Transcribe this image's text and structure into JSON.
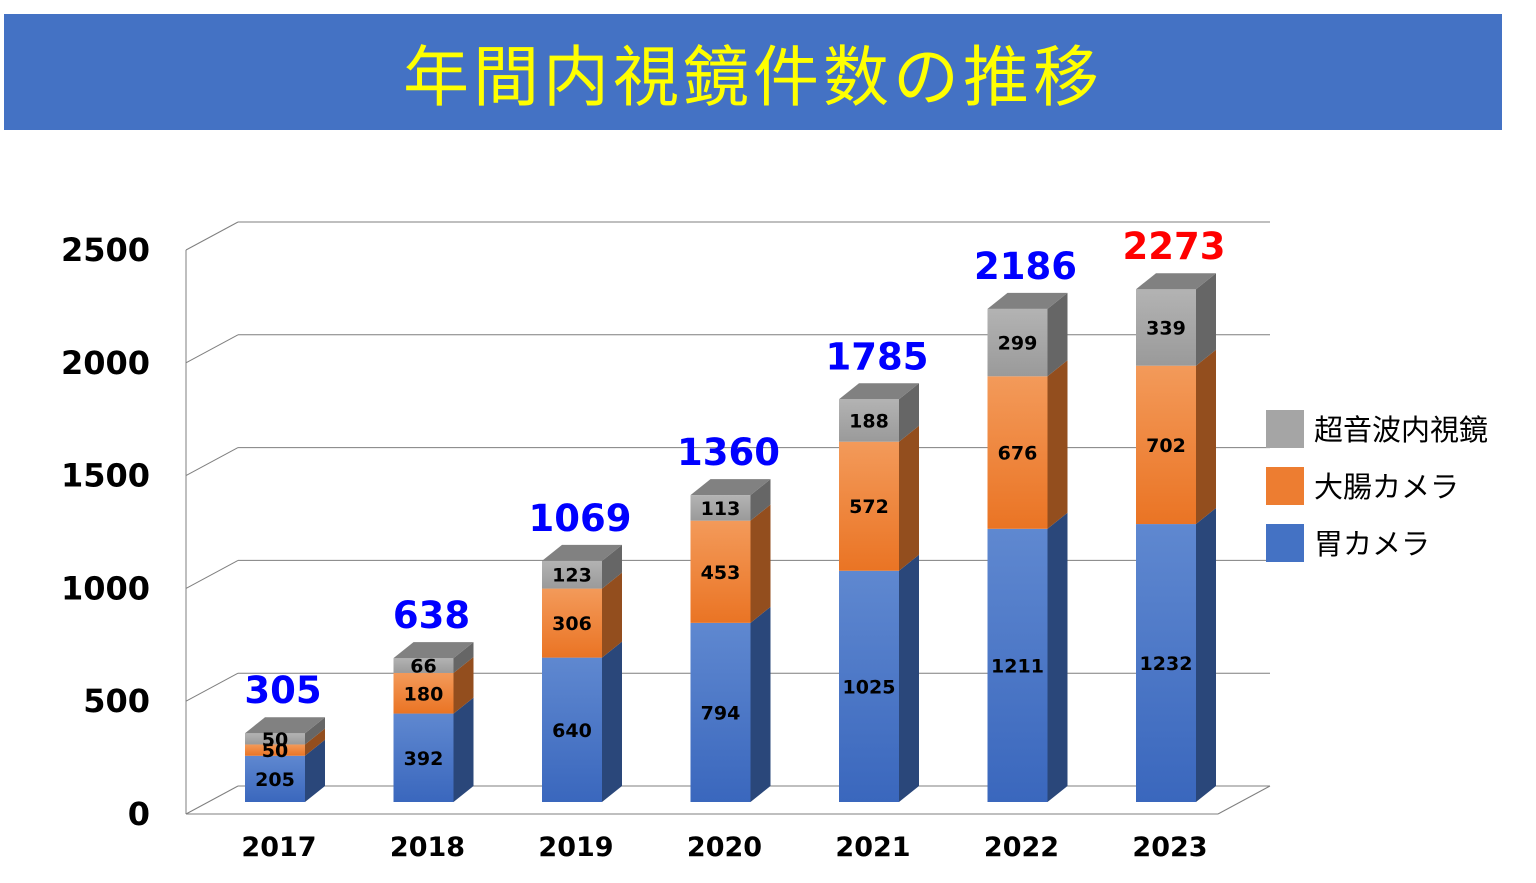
{
  "title": "年間内視鏡件数の推移",
  "colors": {
    "title_bg": "#4472c4",
    "title_text": "#ffff00",
    "total_default": "#0000ff",
    "total_highlight": "#ff0000"
  },
  "chart_data": {
    "type": "bar",
    "stacked": true,
    "three_d": true,
    "categories": [
      "2017",
      "2018",
      "2019",
      "2020",
      "2021",
      "2022",
      "2023"
    ],
    "series": [
      {
        "name": "胃カメラ",
        "color": "#4472c4",
        "values": [
          205,
          392,
          640,
          794,
          1025,
          1211,
          1232
        ]
      },
      {
        "name": "大腸カメラ",
        "color": "#ed7d31",
        "values": [
          50,
          180,
          306,
          453,
          572,
          676,
          702
        ]
      },
      {
        "name": "超音波内視鏡",
        "color": "#a5a5a5",
        "values": [
          50,
          66,
          123,
          113,
          188,
          299,
          339
        ]
      }
    ],
    "totals": [
      305,
      638,
      1069,
      1360,
      1785,
      2186,
      2273
    ],
    "highlight_total_index": 6,
    "ylim": [
      0,
      2500
    ],
    "yticks": [
      0,
      500,
      1000,
      1500,
      2000,
      2500
    ],
    "grid": true,
    "legend_position": "right",
    "legend_order": [
      "超音波内視鏡",
      "大腸カメラ",
      "胃カメラ"
    ]
  }
}
